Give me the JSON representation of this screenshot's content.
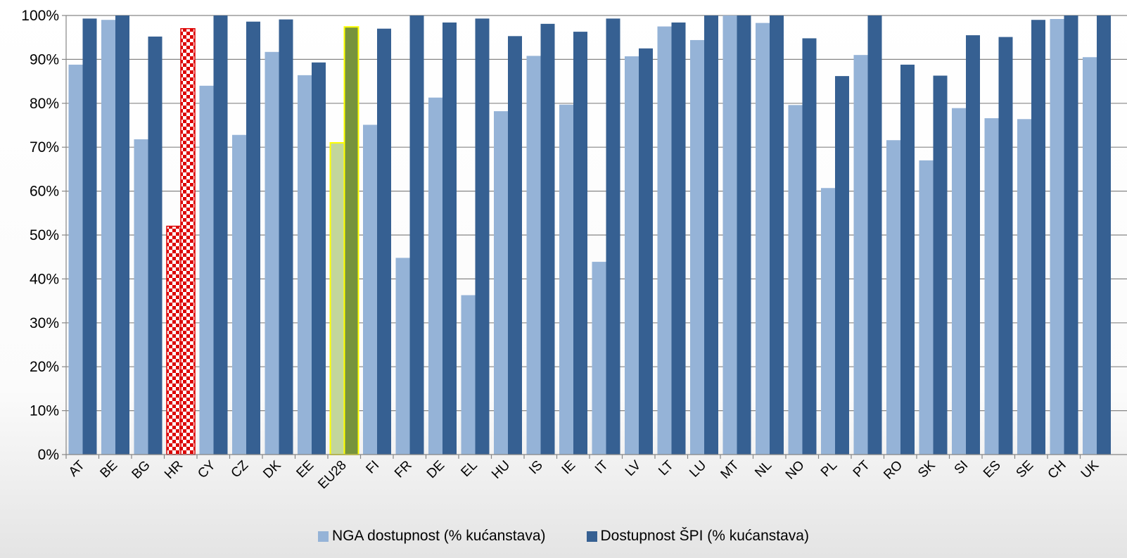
{
  "chart_data": {
    "type": "bar",
    "categories": [
      "AT",
      "BE",
      "BG",
      "HR",
      "CY",
      "CZ",
      "DK",
      "EE",
      "EU28",
      "FI",
      "FR",
      "DE",
      "EL",
      "HU",
      "IS",
      "IE",
      "IT",
      "LV",
      "LT",
      "LU",
      "MT",
      "NL",
      "NO",
      "PL",
      "PT",
      "RO",
      "SK",
      "SI",
      "ES",
      "SE",
      "CH",
      "UK"
    ],
    "series": [
      {
        "name": "NGA dostupnost (% kućanstava)",
        "color": "#95b3d7",
        "values": [
          88.8,
          99,
          71.8,
          52,
          84,
          72.8,
          91.7,
          86.4,
          71,
          75.1,
          44.8,
          81.3,
          36.3,
          78.2,
          90.8,
          79.7,
          43.9,
          90.7,
          97.5,
          94.4,
          100,
          98.3,
          79.6,
          60.7,
          91,
          71.6,
          67,
          78.9,
          76.6,
          76.4,
          99.2,
          90.5
        ]
      },
      {
        "name": "Dostupnost ŠPI (% kućanstava)",
        "color": "#366092",
        "values": [
          99.3,
          100,
          95.2,
          97,
          100,
          98.6,
          99.1,
          89.3,
          97.4,
          97,
          100,
          98.4,
          99.3,
          95.3,
          98.1,
          96.3,
          99.3,
          92.5,
          98.4,
          100,
          100,
          100,
          94.8,
          86.2,
          100,
          88.8,
          86.3,
          95.5,
          95.1,
          99,
          100,
          100
        ]
      }
    ],
    "highlight": {
      "HR": {
        "style": "red-white-checkerboard"
      },
      "EU28": {
        "outline": "#ffff00",
        "nga_color": "#c3d69b",
        "spi_color": "#77933c"
      }
    },
    "yticks": [
      "0%",
      "10%",
      "20%",
      "30%",
      "40%",
      "50%",
      "60%",
      "70%",
      "80%",
      "90%",
      "100%"
    ],
    "ylim": [
      0,
      100
    ],
    "grid": true,
    "legend_position": "bottom-center"
  }
}
